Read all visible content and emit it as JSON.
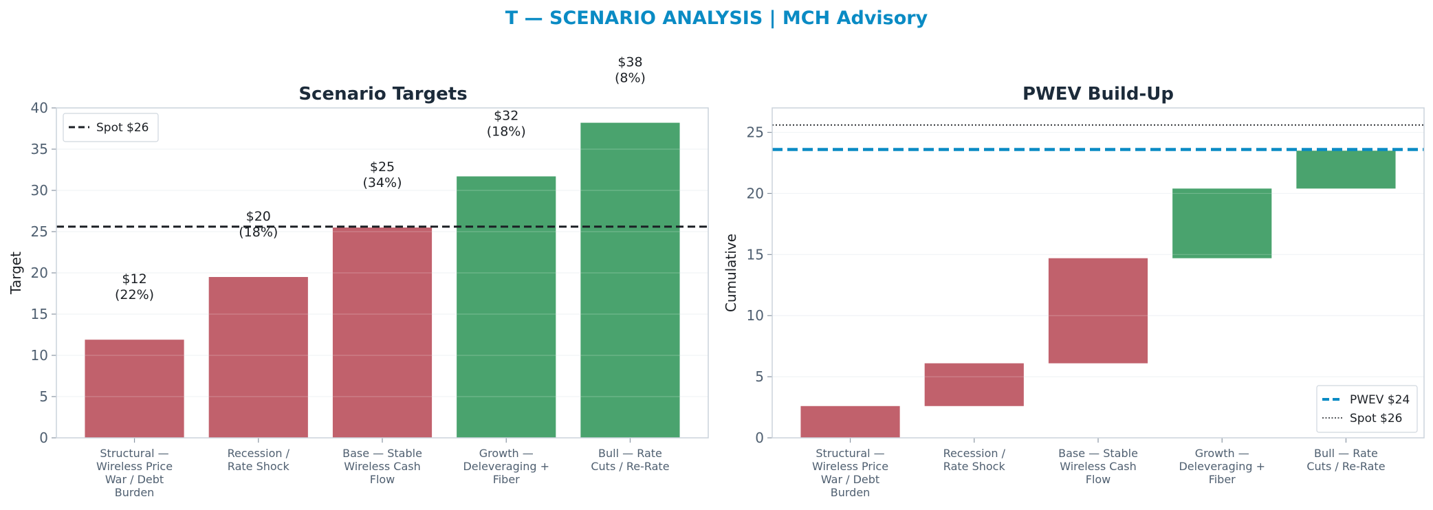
{
  "figure_title": "T — SCENARIO ANALYSIS | MCH Advisory",
  "colors": {
    "title": "#0a8bc4",
    "bear": "#c1616c",
    "bull": "#4aa36e",
    "spot_line": "#1b1f24",
    "pwev_line": "#0a8bc4",
    "axis": "#cbd3dc",
    "tick_text": "#4f5f70",
    "panel_title": "#1c2b3a"
  },
  "chart_data": [
    {
      "type": "bar",
      "title": "Scenario Targets",
      "xlabel": "",
      "ylabel": "Target",
      "categories": [
        [
          "Structural —",
          "Wireless Price",
          "War / Debt",
          "Burden"
        ],
        [
          "Recession /",
          "Rate Shock"
        ],
        [
          "Base — Stable",
          "Wireless Cash",
          "Flow"
        ],
        [
          "Growth —",
          "Deleveraging +",
          "Fiber"
        ],
        [
          "Bull — Rate",
          "Cuts / Re-Rate"
        ]
      ],
      "values": [
        11.9,
        19.5,
        25.5,
        31.7,
        38.2
      ],
      "bar_colors": [
        "bear",
        "bear",
        "bear",
        "bull",
        "bull"
      ],
      "data_labels": [
        [
          "$12",
          "(22%)"
        ],
        [
          "$20",
          "(18%)"
        ],
        [
          "$25",
          "(34%)"
        ],
        [
          "$32",
          "(18%)"
        ],
        [
          "$38",
          "(8%)"
        ]
      ],
      "ylim": [
        0,
        40
      ],
      "yticks": [
        0,
        5,
        10,
        15,
        20,
        25,
        30,
        35,
        40
      ],
      "reference_lines": [
        {
          "name": "Spot $26",
          "value": 25.6,
          "style": "dashed"
        }
      ],
      "legend": [
        "Spot $26"
      ],
      "legend_position": "top-left",
      "grid": true
    },
    {
      "type": "bar",
      "title": "PWEV Build-Up",
      "xlabel": "",
      "ylabel": "Cumulative",
      "categories": [
        [
          "Structural —",
          "Wireless Price",
          "War / Debt",
          "Burden"
        ],
        [
          "Recession /",
          "Rate Shock"
        ],
        [
          "Base — Stable",
          "Wireless Cash",
          "Flow"
        ],
        [
          "Growth —",
          "Deleveraging +",
          "Fiber"
        ],
        [
          "Bull — Rate",
          "Cuts / Re-Rate"
        ]
      ],
      "ranges": [
        [
          0,
          2.6
        ],
        [
          2.6,
          6.1
        ],
        [
          6.1,
          14.7
        ],
        [
          14.7,
          20.4
        ],
        [
          20.4,
          23.5
        ]
      ],
      "bar_colors": [
        "bear",
        "bear",
        "bear",
        "bull",
        "bull"
      ],
      "ylim": [
        0,
        27
      ],
      "yticks": [
        0,
        5,
        10,
        15,
        20,
        25
      ],
      "reference_lines": [
        {
          "name": "PWEV $24",
          "value": 23.6,
          "style": "dashed-thick"
        },
        {
          "name": "Spot $26",
          "value": 25.6,
          "style": "dotted"
        }
      ],
      "legend": [
        "PWEV $24",
        "Spot $26"
      ],
      "legend_position": "bottom-right",
      "grid": true
    }
  ]
}
